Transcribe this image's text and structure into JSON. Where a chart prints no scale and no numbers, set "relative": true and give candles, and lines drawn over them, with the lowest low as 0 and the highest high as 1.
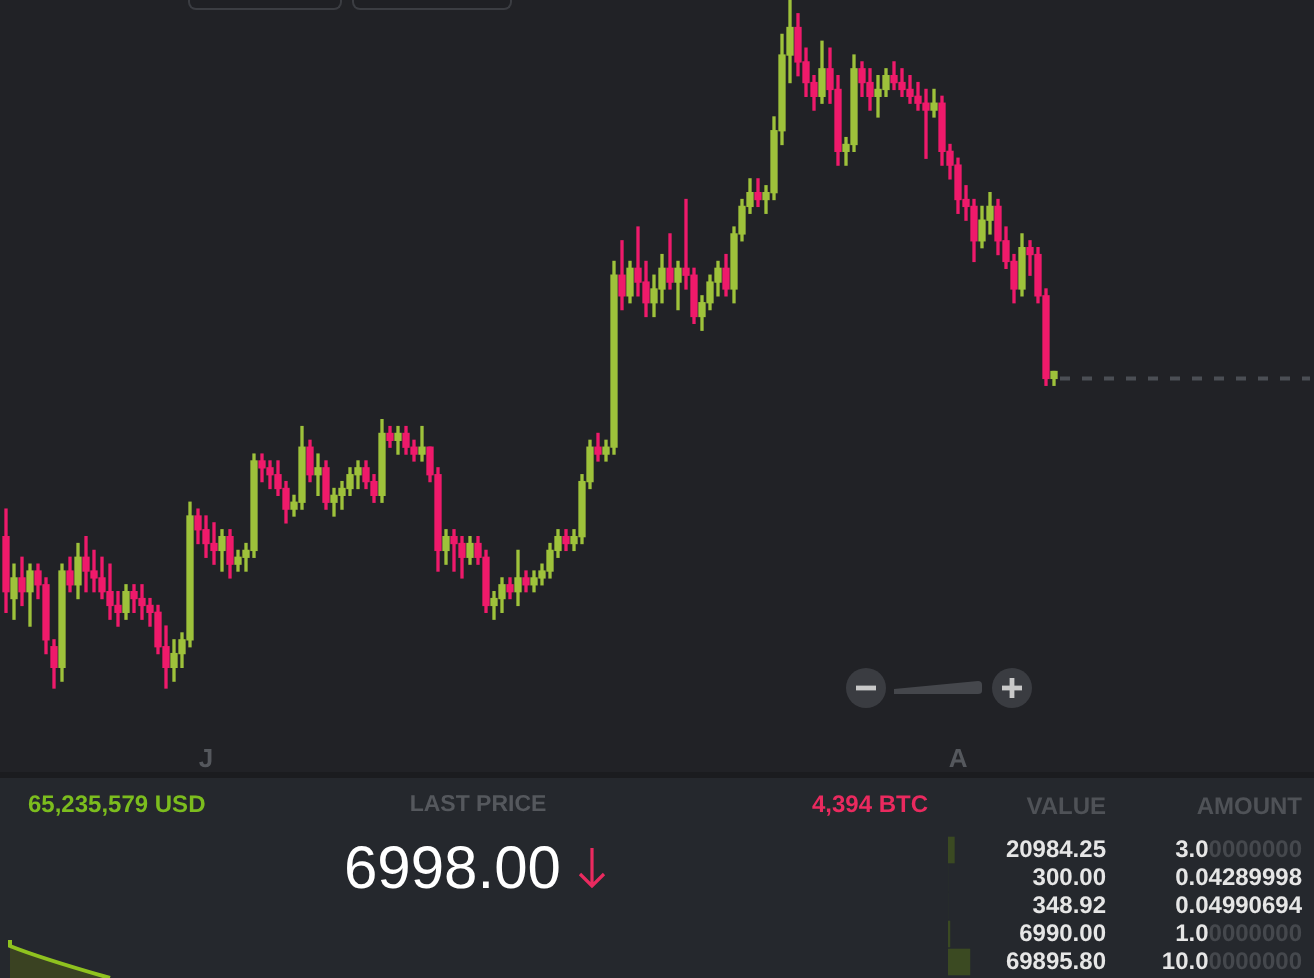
{
  "chart_data": [
    {
      "type": "candlestick",
      "relative": true,
      "categories": [
        null,
        null,
        null,
        null,
        null,
        null,
        null,
        null,
        null,
        null,
        null,
        null,
        null,
        null,
        null,
        null,
        null,
        null,
        null,
        null,
        null,
        null,
        null,
        null,
        null,
        "J",
        null,
        null,
        null,
        null,
        null,
        null,
        null,
        null,
        null,
        null,
        null,
        null,
        null,
        null,
        null,
        null,
        null,
        null,
        null,
        null,
        null,
        null,
        null,
        null,
        null,
        null,
        null,
        null,
        null,
        null,
        null,
        null,
        null,
        null,
        null,
        null,
        null,
        null,
        null,
        null,
        null,
        null,
        null,
        null,
        null,
        null,
        null,
        null,
        null,
        null,
        null,
        null,
        null,
        null,
        null,
        null,
        null,
        null,
        null,
        null,
        null,
        null,
        null,
        null,
        null,
        null,
        null,
        null,
        null,
        null,
        null,
        null,
        null,
        null,
        null,
        null,
        null,
        null,
        null,
        null,
        null,
        null,
        null,
        null,
        null,
        null,
        null,
        null,
        null,
        null,
        null,
        null,
        null,
        "A",
        null,
        null,
        null,
        null,
        null,
        null,
        null,
        null,
        null,
        null,
        null,
        null,
        null,
        null,
        null,
        null,
        null,
        null,
        null,
        null,
        null,
        null,
        null,
        null,
        null,
        null,
        null,
        null,
        null,
        null,
        null,
        null,
        null,
        null,
        null,
        null,
        null,
        null,
        null,
        null,
        null,
        null,
        null,
        null
      ],
      "ohlc": [
        [
          0.22,
          0.26,
          0.11,
          0.14
        ],
        [
          0.13,
          0.18,
          0.1,
          0.16
        ],
        [
          0.16,
          0.19,
          0.12,
          0.14
        ],
        [
          0.14,
          0.18,
          0.09,
          0.17
        ],
        [
          0.17,
          0.18,
          0.13,
          0.15
        ],
        [
          0.15,
          0.16,
          0.05,
          0.07
        ],
        [
          0.06,
          0.07,
          0.0,
          0.03
        ],
        [
          0.03,
          0.18,
          0.01,
          0.17
        ],
        [
          0.17,
          0.19,
          0.14,
          0.15
        ],
        [
          0.15,
          0.21,
          0.13,
          0.19
        ],
        [
          0.19,
          0.22,
          0.14,
          0.17
        ],
        [
          0.17,
          0.2,
          0.14,
          0.16
        ],
        [
          0.16,
          0.19,
          0.13,
          0.14
        ],
        [
          0.14,
          0.18,
          0.1,
          0.12
        ],
        [
          0.12,
          0.14,
          0.09,
          0.11
        ],
        [
          0.11,
          0.15,
          0.1,
          0.14
        ],
        [
          0.14,
          0.15,
          0.11,
          0.13
        ],
        [
          0.13,
          0.15,
          0.1,
          0.12
        ],
        [
          0.12,
          0.13,
          0.09,
          0.11
        ],
        [
          0.11,
          0.12,
          0.05,
          0.06
        ],
        [
          0.06,
          0.09,
          0.0,
          0.03
        ],
        [
          0.03,
          0.07,
          0.01,
          0.05
        ],
        [
          0.05,
          0.08,
          0.03,
          0.07
        ],
        [
          0.07,
          0.27,
          0.06,
          0.25
        ],
        [
          0.25,
          0.26,
          0.21,
          0.23
        ],
        [
          0.23,
          0.25,
          0.19,
          0.21
        ],
        [
          0.21,
          0.24,
          0.18,
          0.2
        ],
        [
          0.2,
          0.23,
          0.17,
          0.22
        ],
        [
          0.22,
          0.23,
          0.16,
          0.18
        ],
        [
          0.18,
          0.2,
          0.17,
          0.19
        ],
        [
          0.19,
          0.21,
          0.17,
          0.2
        ],
        [
          0.2,
          0.34,
          0.19,
          0.33
        ],
        [
          0.33,
          0.34,
          0.3,
          0.32
        ],
        [
          0.32,
          0.33,
          0.29,
          0.31
        ],
        [
          0.31,
          0.33,
          0.28,
          0.29
        ],
        [
          0.29,
          0.3,
          0.24,
          0.26
        ],
        [
          0.26,
          0.28,
          0.25,
          0.27
        ],
        [
          0.27,
          0.38,
          0.26,
          0.35
        ],
        [
          0.35,
          0.36,
          0.3,
          0.31
        ],
        [
          0.31,
          0.34,
          0.28,
          0.32
        ],
        [
          0.32,
          0.33,
          0.26,
          0.27
        ],
        [
          0.27,
          0.29,
          0.25,
          0.28
        ],
        [
          0.28,
          0.3,
          0.26,
          0.29
        ],
        [
          0.29,
          0.32,
          0.28,
          0.31
        ],
        [
          0.31,
          0.33,
          0.29,
          0.32
        ],
        [
          0.32,
          0.33,
          0.29,
          0.3
        ],
        [
          0.3,
          0.31,
          0.27,
          0.28
        ],
        [
          0.28,
          0.39,
          0.27,
          0.37
        ],
        [
          0.37,
          0.38,
          0.35,
          0.36
        ],
        [
          0.36,
          0.38,
          0.34,
          0.37
        ],
        [
          0.37,
          0.38,
          0.34,
          0.35
        ],
        [
          0.35,
          0.36,
          0.33,
          0.34
        ],
        [
          0.34,
          0.38,
          0.33,
          0.35
        ],
        [
          0.35,
          0.35,
          0.3,
          0.31
        ],
        [
          0.31,
          0.32,
          0.17,
          0.2
        ],
        [
          0.2,
          0.23,
          0.18,
          0.22
        ],
        [
          0.22,
          0.23,
          0.17,
          0.21
        ],
        [
          0.21,
          0.22,
          0.16,
          0.19
        ],
        [
          0.19,
          0.22,
          0.18,
          0.21
        ],
        [
          0.21,
          0.22,
          0.18,
          0.19
        ],
        [
          0.19,
          0.2,
          0.11,
          0.12
        ],
        [
          0.12,
          0.14,
          0.1,
          0.13
        ],
        [
          0.13,
          0.16,
          0.11,
          0.15
        ],
        [
          0.15,
          0.16,
          0.13,
          0.14
        ],
        [
          0.14,
          0.2,
          0.12,
          0.16
        ],
        [
          0.16,
          0.17,
          0.14,
          0.15
        ],
        [
          0.15,
          0.17,
          0.14,
          0.16
        ],
        [
          0.16,
          0.18,
          0.15,
          0.17
        ],
        [
          0.17,
          0.21,
          0.16,
          0.2
        ],
        [
          0.2,
          0.23,
          0.19,
          0.22
        ],
        [
          0.22,
          0.23,
          0.2,
          0.21
        ],
        [
          0.21,
          0.23,
          0.2,
          0.22
        ],
        [
          0.22,
          0.31,
          0.21,
          0.3
        ],
        [
          0.3,
          0.36,
          0.29,
          0.35
        ],
        [
          0.35,
          0.37,
          0.33,
          0.34
        ],
        [
          0.34,
          0.36,
          0.33,
          0.35
        ],
        [
          0.35,
          0.62,
          0.34,
          0.6
        ],
        [
          0.6,
          0.65,
          0.55,
          0.57
        ],
        [
          0.57,
          0.62,
          0.56,
          0.61
        ],
        [
          0.61,
          0.67,
          0.57,
          0.59
        ],
        [
          0.59,
          0.62,
          0.54,
          0.56
        ],
        [
          0.56,
          0.6,
          0.54,
          0.58
        ],
        [
          0.58,
          0.63,
          0.56,
          0.61
        ],
        [
          0.61,
          0.66,
          0.58,
          0.59
        ],
        [
          0.59,
          0.62,
          0.55,
          0.61
        ],
        [
          0.61,
          0.71,
          0.58,
          0.6
        ],
        [
          0.6,
          0.61,
          0.53,
          0.54
        ],
        [
          0.54,
          0.57,
          0.52,
          0.56
        ],
        [
          0.56,
          0.6,
          0.55,
          0.59
        ],
        [
          0.59,
          0.62,
          0.57,
          0.61
        ],
        [
          0.61,
          0.63,
          0.57,
          0.58
        ],
        [
          0.58,
          0.67,
          0.56,
          0.66
        ],
        [
          0.66,
          0.71,
          0.65,
          0.7
        ],
        [
          0.7,
          0.74,
          0.69,
          0.72
        ],
        [
          0.72,
          0.74,
          0.7,
          0.71
        ],
        [
          0.71,
          0.73,
          0.69,
          0.72
        ],
        [
          0.72,
          0.83,
          0.71,
          0.81
        ],
        [
          0.81,
          0.95,
          0.79,
          0.92
        ],
        [
          0.92,
          1.0,
          0.88,
          0.96
        ],
        [
          0.96,
          0.98,
          0.89,
          0.91
        ],
        [
          0.91,
          0.93,
          0.86,
          0.88
        ],
        [
          0.88,
          0.89,
          0.84,
          0.86
        ],
        [
          0.86,
          0.94,
          0.85,
          0.9
        ],
        [
          0.9,
          0.93,
          0.85,
          0.87
        ],
        [
          0.87,
          0.89,
          0.76,
          0.78
        ],
        [
          0.78,
          0.8,
          0.76,
          0.79
        ],
        [
          0.79,
          0.92,
          0.78,
          0.9
        ],
        [
          0.9,
          0.91,
          0.86,
          0.88
        ],
        [
          0.88,
          0.9,
          0.84,
          0.86
        ],
        [
          0.86,
          0.89,
          0.83,
          0.87
        ],
        [
          0.87,
          0.9,
          0.86,
          0.89
        ],
        [
          0.89,
          0.91,
          0.87,
          0.88
        ],
        [
          0.88,
          0.9,
          0.86,
          0.87
        ],
        [
          0.87,
          0.89,
          0.85,
          0.86
        ],
        [
          0.86,
          0.88,
          0.84,
          0.85
        ],
        [
          0.85,
          0.87,
          0.77,
          0.84
        ],
        [
          0.84,
          0.87,
          0.83,
          0.85
        ],
        [
          0.85,
          0.86,
          0.76,
          0.78
        ],
        [
          0.78,
          0.79,
          0.74,
          0.76
        ],
        [
          0.76,
          0.77,
          0.69,
          0.71
        ],
        [
          0.71,
          0.73,
          0.68,
          0.7
        ],
        [
          0.7,
          0.71,
          0.62,
          0.65
        ],
        [
          0.65,
          0.7,
          0.64,
          0.68
        ],
        [
          0.68,
          0.72,
          0.66,
          0.7
        ],
        [
          0.7,
          0.71,
          0.63,
          0.65
        ],
        [
          0.65,
          0.67,
          0.61,
          0.62
        ],
        [
          0.62,
          0.63,
          0.56,
          0.58
        ],
        [
          0.58,
          0.66,
          0.57,
          0.64
        ],
        [
          0.64,
          0.65,
          0.6,
          0.63
        ],
        [
          0.63,
          0.64,
          0.56,
          0.57
        ],
        [
          0.57,
          0.58,
          0.44,
          0.45
        ],
        [
          0.45,
          0.46,
          0.44,
          0.46
        ],
        null,
        null,
        null,
        null,
        null,
        null,
        null,
        null,
        null,
        null,
        null,
        null,
        null,
        null,
        null,
        null,
        null,
        null,
        null,
        null,
        null,
        null,
        null,
        null,
        null,
        null,
        null,
        null,
        null,
        null,
        null,
        null
      ],
      "colors": [
        "#ef1a6b",
        "#9ec23b",
        "#ef1a6b",
        "#9ec23b",
        "#ef1a6b",
        "#ef1a6b",
        "#ef1a6b",
        "#9ec23b",
        "#ef1a6b",
        "#9ec23b",
        "#ef1a6b",
        "#ef1a6b",
        "#ef1a6b",
        "#ef1a6b",
        "#ef1a6b",
        "#9ec23b",
        "#ef1a6b",
        "#ef1a6b",
        "#ef1a6b",
        "#ef1a6b",
        "#ef1a6b",
        "#9ec23b",
        "#9ec23b",
        "#9ec23b",
        "#ef1a6b",
        "#ef1a6b",
        "#ef1a6b",
        "#9ec23b",
        "#ef1a6b",
        "#9ec23b",
        "#9ec23b",
        "#9ec23b",
        "#ef1a6b",
        "#ef1a6b",
        "#ef1a6b",
        "#ef1a6b",
        "#9ec23b",
        "#9ec23b",
        "#ef1a6b",
        "#9ec23b",
        "#ef1a6b",
        "#9ec23b",
        "#9ec23b",
        "#9ec23b",
        "#9ec23b",
        "#ef1a6b",
        "#ef1a6b",
        "#9ec23b",
        "#ef1a6b",
        "#9ec23b",
        "#ef1a6b",
        "#ef1a6b",
        "#9ec23b",
        "#ef1a6b",
        "#ef1a6b",
        "#9ec23b",
        "#ef1a6b",
        "#ef1a6b",
        "#9ec23b",
        "#ef1a6b",
        "#ef1a6b",
        "#9ec23b",
        "#9ec23b",
        "#ef1a6b",
        "#9ec23b",
        "#ef1a6b",
        "#9ec23b",
        "#9ec23b",
        "#9ec23b",
        "#9ec23b",
        "#ef1a6b",
        "#9ec23b",
        "#9ec23b",
        "#9ec23b",
        "#ef1a6b",
        "#9ec23b",
        "#9ec23b",
        "#ef1a6b",
        "#9ec23b",
        "#ef1a6b",
        "#ef1a6b",
        "#9ec23b",
        "#9ec23b",
        "#ef1a6b",
        "#9ec23b",
        "#ef1a6b",
        "#ef1a6b",
        "#9ec23b",
        "#9ec23b",
        "#9ec23b",
        "#ef1a6b",
        "#9ec23b",
        "#9ec23b",
        "#9ec23b",
        "#ef1a6b",
        "#9ec23b",
        "#9ec23b",
        "#9ec23b",
        "#9ec23b",
        "#ef1a6b",
        "#ef1a6b",
        "#ef1a6b",
        "#9ec23b",
        "#ef1a6b",
        "#ef1a6b",
        "#9ec23b",
        "#9ec23b",
        "#ef1a6b",
        "#ef1a6b",
        "#9ec23b",
        "#9ec23b",
        "#ef1a6b",
        "#ef1a6b",
        "#ef1a6b",
        "#ef1a6b",
        "#ef1a6b",
        "#9ec23b",
        "#ef1a6b",
        "#ef1a6b",
        "#ef1a6b",
        "#ef1a6b",
        "#ef1a6b",
        "#9ec23b",
        "#9ec23b",
        "#ef1a6b",
        "#ef1a6b",
        "#ef1a6b",
        "#9ec23b",
        "#ef1a6b",
        "#ef1a6b",
        "#ef1a6b",
        "#9ec23b",
        null,
        null,
        null,
        null,
        null,
        null,
        null,
        null,
        null,
        null,
        null,
        null,
        null,
        null,
        null,
        null,
        null,
        null,
        null,
        null,
        null,
        null,
        null,
        null,
        null,
        null,
        null,
        null,
        null,
        null,
        null,
        null
      ],
      "ref_lines": [
        {
          "axis": "y",
          "value": 0.45,
          "color": "#4b4e54",
          "line_style": "dashed"
        }
      ]
    },
    {
      "type": "bar",
      "orientation": "horizontal",
      "categories": [
        "20984.25",
        "300.00",
        "348.92",
        "6990.00",
        "69895.80"
      ],
      "values": [
        3,
        0.04289998,
        0.04990694,
        1,
        10
      ],
      "value_labels": [
        "3.00000000",
        "0.04289998",
        "0.04990694",
        "1.00000000",
        "10.00000000"
      ],
      "color": "#3b4a22",
      "tick_labels": "y",
      "annotations": [
        "65,235,579 USD",
        "LAST PRICE",
        "6998.00",
        "4,394 BTC",
        "VALUE",
        "AMOUNT"
      ]
    }
  ]
}
